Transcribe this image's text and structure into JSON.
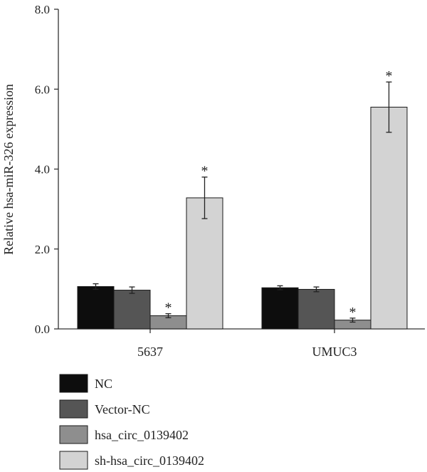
{
  "chart_data": {
    "type": "bar",
    "title": "",
    "xlabel": "",
    "ylabel": "Relative hsa-miR-326 expression",
    "ylim": [
      0,
      8
    ],
    "yticks": [
      "0.0",
      "2.0",
      "4.0",
      "6.0",
      "8.0"
    ],
    "ytick_values": [
      0,
      2,
      4,
      6,
      8
    ],
    "categories": [
      "5637",
      "UMUC3"
    ],
    "grid": false,
    "legend_position": "bottom-left",
    "significance_marker": "*",
    "series": [
      {
        "name": "NC",
        "color": "#0d0d0d",
        "values": [
          1.06,
          1.03
        ],
        "errors": [
          0.07,
          0.05
        ],
        "significant": [
          false,
          false
        ]
      },
      {
        "name": "Vector-NC",
        "color": "#555555",
        "values": [
          0.97,
          0.99
        ],
        "errors": [
          0.08,
          0.06
        ],
        "significant": [
          false,
          false
        ]
      },
      {
        "name": "hsa_circ_0139402",
        "color": "#8e8e8e",
        "values": [
          0.33,
          0.22
        ],
        "errors": [
          0.05,
          0.05
        ],
        "significant": [
          true,
          true
        ]
      },
      {
        "name": "sh-hsa_circ_0139402",
        "color": "#d3d3d3",
        "values": [
          3.28,
          5.55
        ],
        "errors": [
          0.52,
          0.63
        ],
        "significant": [
          true,
          true
        ]
      }
    ]
  }
}
